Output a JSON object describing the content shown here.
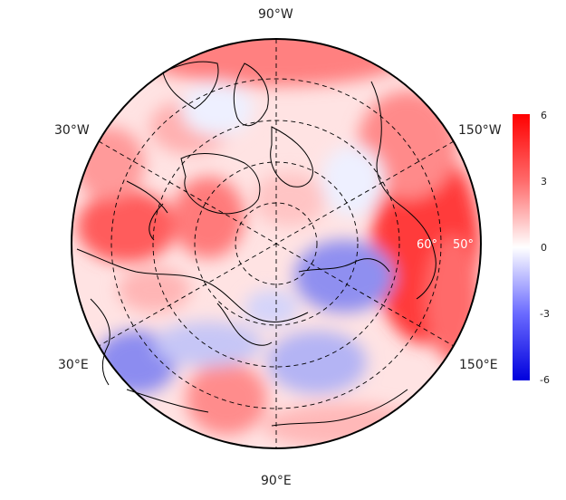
{
  "map": {
    "projection": "north-polar-stereographic",
    "center": "North Pole",
    "lat_circles_deg": [
      80,
      70,
      60,
      50,
      40
    ],
    "meridians_deg": [
      -150,
      -90,
      -30,
      30,
      90,
      150
    ],
    "lon_labels": {
      "top": "90°W",
      "upper_left": "30°W",
      "upper_right": "150°W",
      "lower_left": "30°E",
      "lower_right": "150°E",
      "bottom": "90°E"
    },
    "lat_labels": [
      "60°",
      "50°"
    ],
    "field_description": "gridded anomaly field, diverging red-white-blue"
  },
  "colorbar": {
    "ticks": [
      "6",
      "3",
      "0",
      "-3",
      "-6"
    ],
    "vmin": -6,
    "vmax": 6,
    "colors": {
      "max": "#ff0000",
      "mid": "#ffffff",
      "min": "#0000dd"
    }
  }
}
